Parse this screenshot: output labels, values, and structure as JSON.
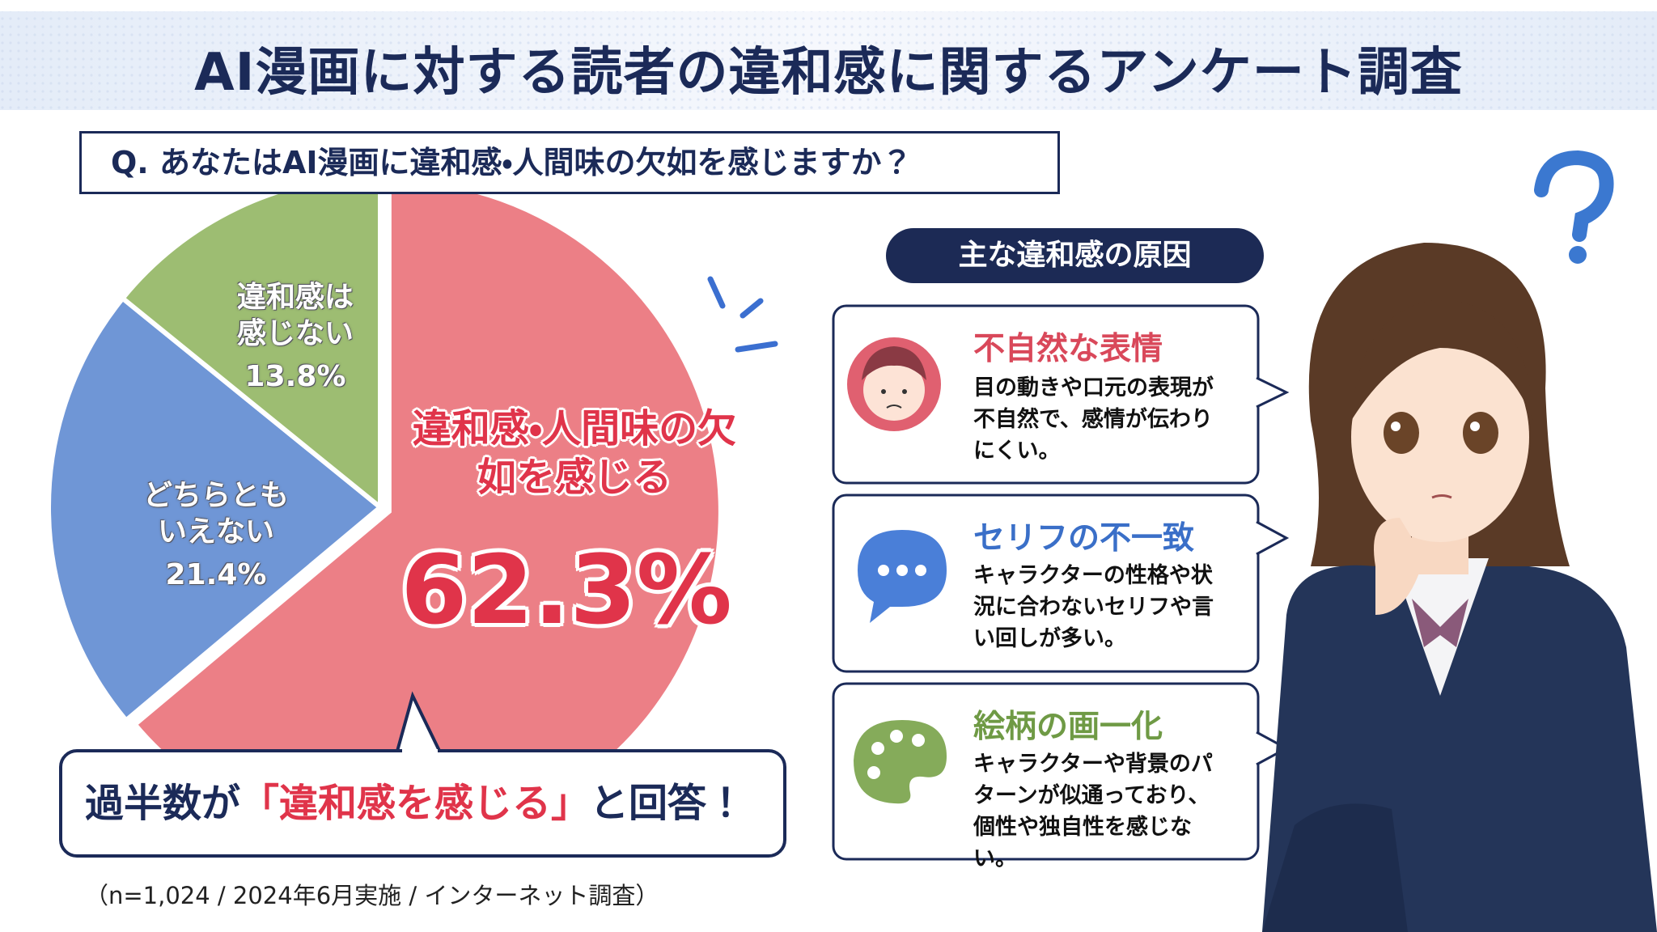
{
  "chart_data": {
    "type": "pie",
    "title": "AI漫画に対する読者の違和感に関するアンケート調査",
    "subtitle": "Q. あなたはAI漫画に違和感・人間味の欠如を感じますか？",
    "categories": [
      "違和感・人間味の欠如を感じる",
      "どちらともいえない",
      "違和感は感じない"
    ],
    "values": [
      62.3,
      21.4,
      13.8
    ],
    "value_labels": [
      "62.3%",
      "21.4%",
      "13.8%"
    ],
    "colors": [
      "#ec7f86",
      "#6f96d6",
      "#9dbd72"
    ]
  },
  "callout": [
    "過半数が",
    "「違和感を感じる」",
    "と回答！"
  ],
  "footnote": "（n=1,024 / 2024年6月実施 / インターネット調査）",
  "reasons": {
    "heading": "主な違和感の原因",
    "items": [
      {
        "title": "不自然な表情",
        "text": "目の動きや口元の表現が不自然で、感情が伝わりにくい。"
      },
      {
        "title": "セリフの不一致",
        "text": "キャラクターの性格や状況に合わないセリフや言い回しが多い。"
      },
      {
        "title": "絵柄の画一化",
        "text": "キャラクターや背景のパターンが似通っており、個性や独自性を感じない。"
      }
    ]
  }
}
